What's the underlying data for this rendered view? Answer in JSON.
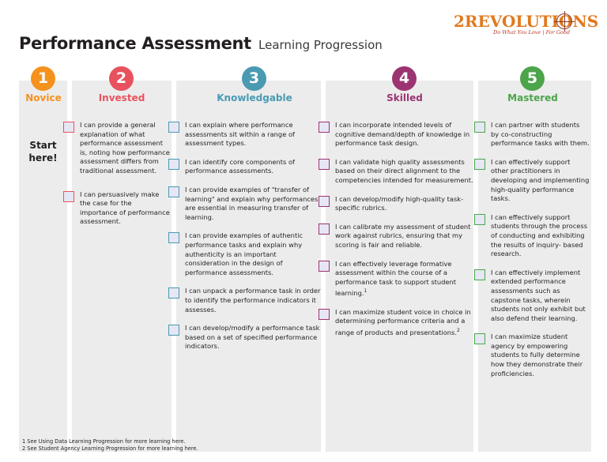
{
  "header": {
    "title": "Performance Assessment",
    "subtitle": "Learning Progression"
  },
  "logo": {
    "text": "2REVOLUTIONS",
    "tagline": "Do What You Love | For Good"
  },
  "colors": {
    "novice": "#f5921e",
    "invested": "#e8525e",
    "knowledgable": "#4a9ab2",
    "skilled": "#9b3471",
    "mastered": "#4ca54a",
    "column_bg": "#ececec"
  },
  "levels": [
    {
      "number": "1",
      "label": "Novice"
    },
    {
      "number": "2",
      "label": "Invested"
    },
    {
      "number": "3",
      "label": "Knowledgable"
    },
    {
      "number": "4",
      "label": "Skilled"
    },
    {
      "number": "5",
      "label": "Mastered"
    }
  ],
  "novice": {
    "start_line1": "Start",
    "start_line2": "here!"
  },
  "invested": {
    "items": [
      "I can provide a general explanation of what performance assessment is, noting how performance assessment differs from traditional assessment.",
      "I can persuasively make the case for the importance of performance assessment."
    ]
  },
  "knowledgable": {
    "items": [
      "I can explain where performance assessments sit within a range of assessment types.",
      "I can identify core components of performance assessments.",
      "I can provide examples of \"transfer of learning\" and explain why performances are essential in measuring transfer of learning.",
      "I can provide examples of authentic performance tasks and explain why authenticity is an important consideration in the design of performance assessments.",
      "I can unpack a performance task in order to identify the performance indicators it assesses.",
      "I can develop/modify a performance task based on a set of specified performance indicators."
    ]
  },
  "skilled": {
    "items": [
      {
        "text": "I can incorporate intended levels of cognitive demand/depth of knowledge in performance task design.",
        "note": ""
      },
      {
        "text": "I can validate high quality assessments based on their direct alignment to the competencies intended for measurement.",
        "note": ""
      },
      {
        "text": "I can develop/modify high-quality task-specific rubrics.",
        "note": ""
      },
      {
        "text": "I can calibrate my assessment of student work against rubrics, ensuring that my scoring is fair and reliable.",
        "note": ""
      },
      {
        "text": "I can effectively leverage formative assessment within the course of a performance task to support student learning.",
        "note": "1"
      },
      {
        "text": "I can maximize student voice in choice in determining performance criteria and a range of products and presentations.",
        "note": "2"
      }
    ]
  },
  "mastered": {
    "items": [
      "I can partner with students by co-constructing performance tasks with them.",
      "I can effectively support other practitioners in developing and implementing high-quality performance tasks.",
      "I can effectively support students through the process of conducting and exhibiting the results of inquiry- based research.",
      "I can effectively implement extended performance assessments such as capstone tasks, wherein students not only exhibit but also defend their learning.",
      "I can maximize student agency by empowering students to fully determine how they demonstrate their proficiencies."
    ]
  },
  "footnotes": [
    "1 See Using Data Learning Progression for more learning here.",
    "2 See Student Agency Learning Progression for more learning here."
  ]
}
